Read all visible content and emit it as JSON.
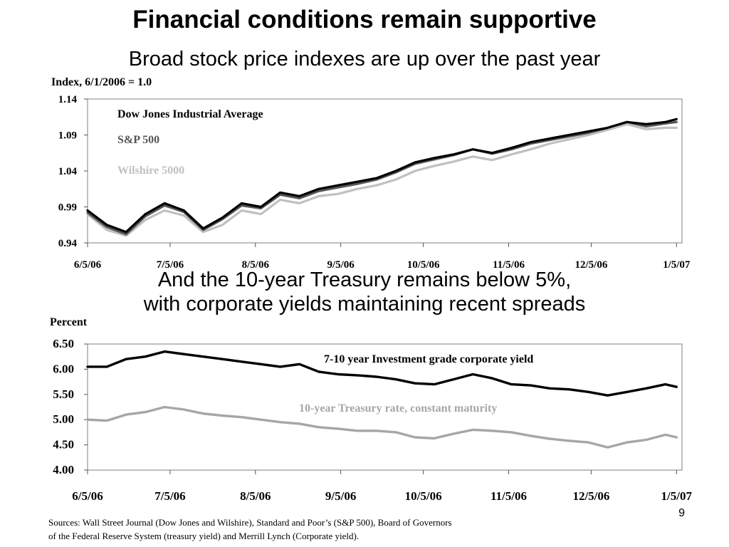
{
  "slide": {
    "title": "Financial conditions remain supportive",
    "subtitle_top": "Broad stock price indexes are up over the past year",
    "subtitle_bottom_line1": "And the 10-year Treasury remains below 5%,",
    "subtitle_bottom_line2": "with corporate yields maintaining recent spreads",
    "sources_line1": "Sources: Wall Street Journal (Dow Jones and Wilshire), Standard and Poor’s (S&P 500), Board of Governors",
    "sources_line2": "of the Federal Reserve System (treasury yield) and Merrill Lynch (Corporate yield).",
    "page_number": "9"
  },
  "chart_data": [
    {
      "type": "line",
      "ylabel": "Index, 6/1/2006 = 1.0",
      "ylim": [
        0.94,
        1.14
      ],
      "yticks": [
        "1.14",
        "1.09",
        "1.04",
        "0.99",
        "0.94"
      ],
      "xlim": [
        "2006-06-05",
        "2007-01-07"
      ],
      "xtick_labels": [
        "6/5/06",
        "7/5/06",
        "8/5/06",
        "9/5/06",
        "10/5/06",
        "11/5/06",
        "12/5/06",
        "1/5/07"
      ],
      "grid": false,
      "legend": "top-left, inline text labels",
      "x": [
        "2006-06-05",
        "2006-06-12",
        "2006-06-19",
        "2006-06-26",
        "2006-07-03",
        "2006-07-10",
        "2006-07-17",
        "2006-07-24",
        "2006-07-31",
        "2006-08-07",
        "2006-08-14",
        "2006-08-21",
        "2006-08-28",
        "2006-09-04",
        "2006-09-11",
        "2006-09-18",
        "2006-09-25",
        "2006-10-02",
        "2006-10-09",
        "2006-10-16",
        "2006-10-23",
        "2006-10-30",
        "2006-11-06",
        "2006-11-13",
        "2006-11-20",
        "2006-11-27",
        "2006-12-04",
        "2006-12-11",
        "2006-12-18",
        "2006-12-25",
        "2007-01-01",
        "2007-01-05"
      ],
      "series": [
        {
          "name": "Dow Jones Industrial Average",
          "color": "#000000",
          "values": [
            0.985,
            0.965,
            0.955,
            0.98,
            0.995,
            0.985,
            0.96,
            0.975,
            0.995,
            0.99,
            1.01,
            1.005,
            1.015,
            1.02,
            1.025,
            1.03,
            1.04,
            1.052,
            1.058,
            1.063,
            1.07,
            1.065,
            1.072,
            1.08,
            1.085,
            1.09,
            1.095,
            1.1,
            1.108,
            1.105,
            1.108,
            1.112
          ]
        },
        {
          "name": "S&P 500",
          "color": "#555555",
          "values": [
            0.982,
            0.962,
            0.952,
            0.977,
            0.992,
            0.983,
            0.958,
            0.973,
            0.992,
            0.988,
            1.007,
            1.002,
            1.012,
            1.017,
            1.022,
            1.028,
            1.038,
            1.05,
            1.056,
            1.062,
            1.07,
            1.064,
            1.07,
            1.078,
            1.083,
            1.088,
            1.093,
            1.1,
            1.108,
            1.102,
            1.106,
            1.108
          ]
        },
        {
          "name": "Wilshire 5000",
          "color": "#c0c0c0",
          "values": [
            0.98,
            0.958,
            0.95,
            0.972,
            0.985,
            0.978,
            0.955,
            0.965,
            0.985,
            0.98,
            1.0,
            0.995,
            1.005,
            1.008,
            1.015,
            1.02,
            1.028,
            1.04,
            1.047,
            1.053,
            1.06,
            1.055,
            1.063,
            1.07,
            1.078,
            1.084,
            1.09,
            1.097,
            1.105,
            1.098,
            1.1,
            1.1
          ]
        }
      ]
    },
    {
      "type": "line",
      "ylabel": "Percent",
      "ylim": [
        4.0,
        6.5
      ],
      "yticks": [
        "6.50",
        "6.00",
        "5.50",
        "5.00",
        "4.50",
        "4.00"
      ],
      "xlim": [
        "2006-06-05",
        "2007-01-07"
      ],
      "xtick_labels": [
        "6/5/06",
        "7/5/06",
        "8/5/06",
        "9/5/06",
        "10/5/06",
        "11/5/06",
        "12/5/06",
        "1/5/07"
      ],
      "grid": false,
      "legend": "inline text labels",
      "x": [
        "2006-06-05",
        "2006-06-12",
        "2006-06-19",
        "2006-06-26",
        "2006-07-03",
        "2006-07-10",
        "2006-07-17",
        "2006-07-24",
        "2006-07-31",
        "2006-08-07",
        "2006-08-14",
        "2006-08-21",
        "2006-08-28",
        "2006-09-04",
        "2006-09-11",
        "2006-09-18",
        "2006-09-25",
        "2006-10-02",
        "2006-10-09",
        "2006-10-16",
        "2006-10-23",
        "2006-10-30",
        "2006-11-06",
        "2006-11-13",
        "2006-11-20",
        "2006-11-27",
        "2006-12-04",
        "2006-12-11",
        "2006-12-18",
        "2006-12-25",
        "2007-01-01",
        "2007-01-05"
      ],
      "series": [
        {
          "name": "7-10 year Investment grade corporate yield",
          "color": "#000000",
          "values": [
            6.05,
            6.05,
            6.2,
            6.25,
            6.35,
            6.3,
            6.25,
            6.2,
            6.15,
            6.1,
            6.05,
            6.1,
            5.95,
            5.9,
            5.88,
            5.85,
            5.8,
            5.72,
            5.7,
            5.8,
            5.9,
            5.82,
            5.7,
            5.68,
            5.62,
            5.6,
            5.55,
            5.48,
            5.55,
            5.62,
            5.7,
            5.65
          ]
        },
        {
          "name": "10-year Treasury rate, constant maturity",
          "color": "#a6a6a6",
          "values": [
            5.0,
            4.98,
            5.1,
            5.15,
            5.25,
            5.2,
            5.12,
            5.08,
            5.05,
            5.0,
            4.95,
            4.92,
            4.85,
            4.82,
            4.78,
            4.78,
            4.75,
            4.65,
            4.63,
            4.72,
            4.8,
            4.78,
            4.75,
            4.68,
            4.62,
            4.58,
            4.55,
            4.45,
            4.55,
            4.6,
            4.7,
            4.65
          ]
        }
      ]
    }
  ]
}
